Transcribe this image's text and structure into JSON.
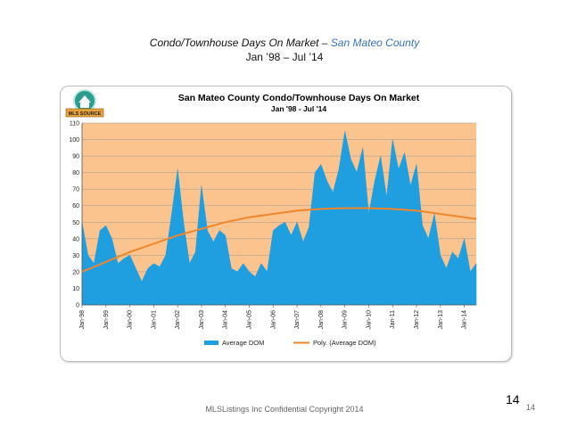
{
  "slide": {
    "title_main": "Condo/Townhouse Days On Market",
    "title_sep": " – ",
    "title_region": "San Mateo County",
    "subtitle": "Jan ’98 – Jul ’14",
    "footer": "MLSListings Inc Confidential Copyright 2014",
    "page_number": "14",
    "page_number_small": "14"
  },
  "logo": {
    "text": "MLS SOURCE",
    "icon": "mls-house-logo-icon",
    "color": "#2a9d8f"
  },
  "chart_data": {
    "type": "area",
    "title": "San Mateo County Condo/Townhouse Days On Market",
    "subtitle": "Jan '98 - Jul '14",
    "xlabel": "",
    "ylabel": "",
    "ylim": [
      0,
      110
    ],
    "yticks": [
      0,
      10,
      20,
      30,
      40,
      50,
      60,
      70,
      80,
      90,
      100,
      110
    ],
    "x_start": "Jan-98",
    "x_end": "Jul-14",
    "x_ticks": [
      "Jan-98",
      "Jan-99",
      "Jan-00",
      "Jan-01",
      "Jan-02",
      "Jan-03",
      "Jan-04",
      "Jan-05",
      "Jan-06",
      "Jan-07",
      "Jan-08",
      "Jan-09",
      "Jan-10",
      "Jan-11",
      "Jan-12",
      "Jan-13",
      "Jan-14"
    ],
    "grid": true,
    "legend_position": "bottom",
    "colors": {
      "plot_bg": "#fbc48e",
      "area": "#1f9ee0",
      "trend": "#f0862c",
      "grid": "#9a9a9a"
    },
    "series": [
      {
        "name": "Average DOM",
        "style": "area",
        "x": [
          "Jan-98",
          "Apr-98",
          "Jul-98",
          "Oct-98",
          "Jan-99",
          "Apr-99",
          "Jul-99",
          "Oct-99",
          "Jan-00",
          "Apr-00",
          "Jul-00",
          "Oct-00",
          "Jan-01",
          "Apr-01",
          "Jul-01",
          "Oct-01",
          "Jan-02",
          "Apr-02",
          "Jul-02",
          "Oct-02",
          "Jan-03",
          "Apr-03",
          "Jul-03",
          "Oct-03",
          "Jan-04",
          "Apr-04",
          "Jul-04",
          "Oct-04",
          "Jan-05",
          "Apr-05",
          "Jul-05",
          "Oct-05",
          "Jan-06",
          "Apr-06",
          "Jul-06",
          "Oct-06",
          "Jan-07",
          "Apr-07",
          "Jul-07",
          "Oct-07",
          "Jan-08",
          "Apr-08",
          "Jul-08",
          "Oct-08",
          "Jan-09",
          "Apr-09",
          "Jul-09",
          "Oct-09",
          "Jan-10",
          "Apr-10",
          "Jul-10",
          "Oct-10",
          "Jan-11",
          "Apr-11",
          "Jul-11",
          "Oct-11",
          "Jan-12",
          "Apr-12",
          "Jul-12",
          "Oct-12",
          "Jan-13",
          "Apr-13",
          "Jul-13",
          "Oct-13",
          "Jan-14",
          "Apr-14",
          "Jul-14"
        ],
        "values": [
          50,
          30,
          25,
          45,
          48,
          40,
          25,
          28,
          30,
          22,
          14,
          22,
          25,
          23,
          30,
          55,
          82,
          50,
          25,
          32,
          72,
          45,
          38,
          45,
          42,
          22,
          20,
          25,
          20,
          17,
          25,
          20,
          45,
          48,
          50,
          42,
          50,
          38,
          47,
          80,
          85,
          75,
          68,
          82,
          105,
          88,
          80,
          95,
          55,
          75,
          90,
          65,
          100,
          82,
          92,
          72,
          85,
          48,
          40,
          55,
          30,
          22,
          32,
          28,
          40,
          20,
          25
        ]
      },
      {
        "name": "Poly. (Average DOM)",
        "style": "line",
        "x": [
          "Jan-98",
          "Jan-99",
          "Jan-00",
          "Jan-01",
          "Jan-02",
          "Jan-03",
          "Jan-04",
          "Jan-05",
          "Jan-06",
          "Jan-07",
          "Jan-08",
          "Jan-09",
          "Jan-10",
          "Jan-11",
          "Jan-12",
          "Jan-13",
          "Jan-14",
          "Jul-14"
        ],
        "values": [
          20,
          26,
          32,
          37,
          42,
          46,
          50,
          53,
          55,
          57,
          58,
          58.5,
          58.5,
          58,
          57,
          55,
          53,
          52
        ]
      }
    ]
  }
}
